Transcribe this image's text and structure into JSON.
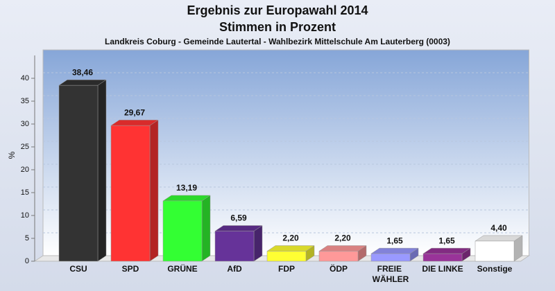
{
  "chart_data": {
    "type": "bar3d",
    "title": "Ergebnis zur Europawahl 2014",
    "subtitle": "Stimmen in Prozent",
    "caption": "Landkreis Coburg - Gemeinde Lautertal - Wahlbezirk Mittelschule Am Lauterberg (0003)",
    "y_label": "%",
    "categories": [
      "CSU",
      "SPD",
      "GRÜNE",
      "AfD",
      "FDP",
      "ÖDP",
      "FREIE WÄHLER",
      "DIE LINKE",
      "Sonstige"
    ],
    "values": [
      38.46,
      29.67,
      13.19,
      6.59,
      2.2,
      2.2,
      1.65,
      1.65,
      4.4
    ],
    "value_labels": [
      "38,46",
      "29,67",
      "13,19",
      "6,59",
      "2,20",
      "2,20",
      "1,65",
      "1,65",
      "4,40"
    ],
    "colors": [
      "#333333",
      "#ff3333",
      "#33ff33",
      "#663399",
      "#ffff33",
      "#ff9999",
      "#9999ff",
      "#993399",
      "#ffffff"
    ],
    "ylim": [
      0,
      45
    ],
    "yticks": [
      0,
      5,
      10,
      15,
      20,
      25,
      30,
      35,
      40
    ],
    "grid": true
  }
}
